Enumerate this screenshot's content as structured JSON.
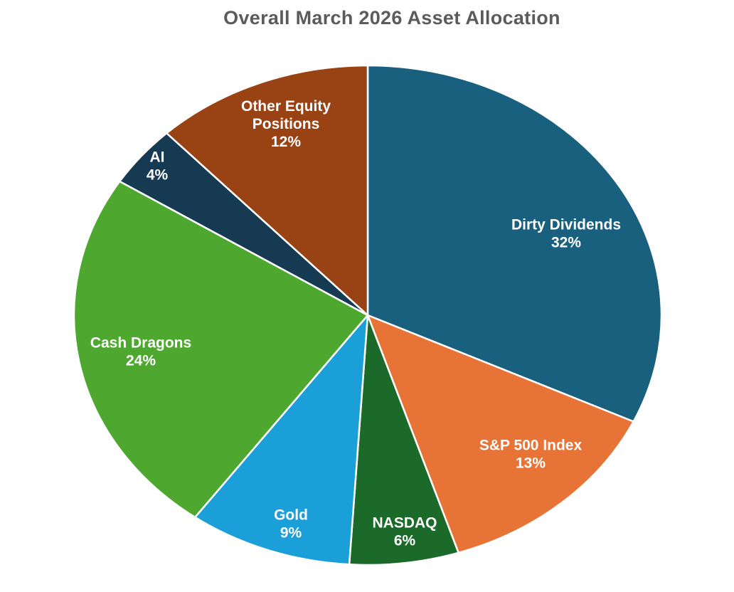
{
  "chart_data": {
    "type": "pie",
    "title": "Overall March 2026 Asset Allocation",
    "slices": [
      {
        "label": "Dirty Dividends",
        "value": 32,
        "value_label": "32%",
        "color": "#19607f"
      },
      {
        "label": "S&P 500 Index",
        "value": 13,
        "value_label": "13%",
        "color": "#e77436"
      },
      {
        "label": "NASDAQ",
        "value": 6,
        "value_label": "6%",
        "color": "#1b6a29"
      },
      {
        "label": "Gold",
        "value": 9,
        "value_label": "9%",
        "color": "#1b9fd8"
      },
      {
        "label": "Cash Dragons",
        "value": 24,
        "value_label": "24%",
        "color": "#4ea82f"
      },
      {
        "label": "AI",
        "value": 4,
        "value_label": "4%",
        "color": "#163a52"
      },
      {
        "label": "Other Equity Positions",
        "value": 12,
        "value_label": "12%",
        "color": "#994213"
      }
    ]
  },
  "slice_label_lines": [
    [
      "Dirty Dividends"
    ],
    [
      "S&P 500 Index"
    ],
    [
      "NASDAQ"
    ],
    [
      "Gold"
    ],
    [
      "Cash Dragons"
    ],
    [
      "AI"
    ],
    [
      "Other Equity",
      "Positions"
    ]
  ]
}
